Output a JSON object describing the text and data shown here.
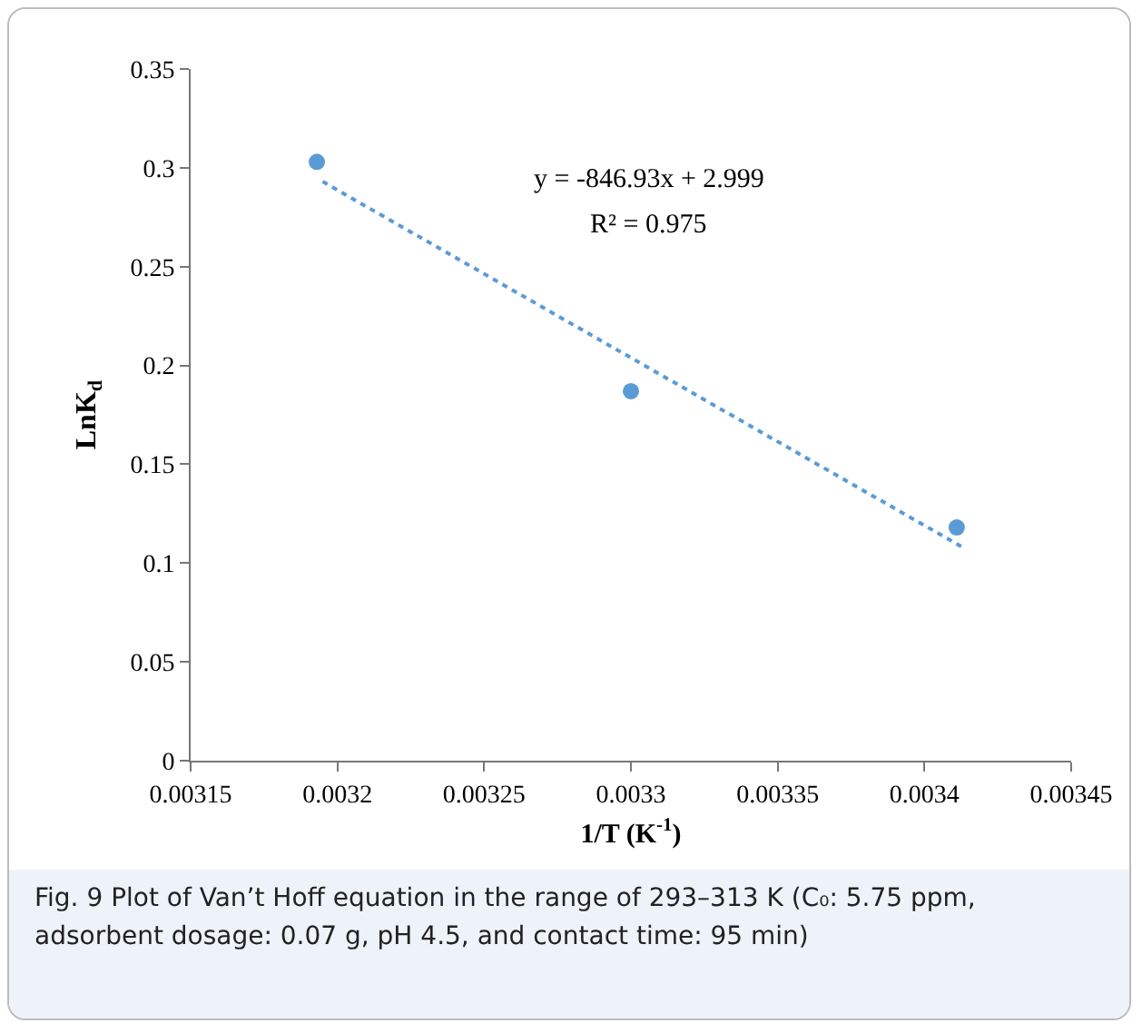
{
  "chart_data": {
    "type": "scatter",
    "xlabel": "1/T (K$^{-1}$)",
    "ylabel": "LnK$_{d}$",
    "x": [
      0.003193,
      0.0033,
      0.003411
    ],
    "series": [
      {
        "color": "#5b9bd5",
        "values": [
          0.303,
          0.187,
          0.118
        ],
        "marker": "circle"
      },
      {
        "type": "line",
        "color": "#5b9bd5",
        "x": [
          0.003195,
          0.003413
        ],
        "values": [
          0.293,
          0.108
        ],
        "line_style": "dotted",
        "marker": "none"
      }
    ],
    "xlim": [
      0.00315,
      0.00345
    ],
    "xticks": [
      0.00315,
      0.0032,
      0.00325,
      0.0033,
      0.00335,
      0.0034,
      0.00345
    ],
    "ylim": [
      0,
      0.35
    ],
    "yticks": [
      0,
      0.05,
      0.1,
      0.15,
      0.2,
      0.25,
      0.3,
      0.35
    ],
    "annotations": [
      "y = -846.93x + 2.999",
      "R² = 0.975",
      "Fig. 9 Plot of Van’t Hoff equation in the range of 293–313 K (C₀: 5.75 ppm, adsorbent dosage: 0.07 g, pH 4.5, and contact time: 95 min)"
    ]
  }
}
